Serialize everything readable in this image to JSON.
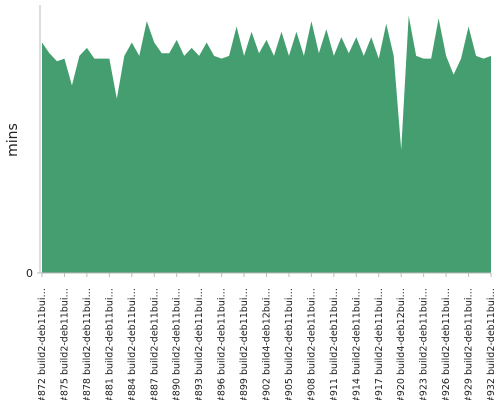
{
  "chart_data": {
    "type": "area",
    "y_label": "mins",
    "color": "#459e6f",
    "categories": [
      "#872 build2-deb11bui…",
      null,
      null,
      "#875 build2-deb11bui…",
      null,
      null,
      "#878 build2-deb11bui…",
      null,
      null,
      "#881 build2-deb11bui…",
      null,
      null,
      "#884 build2-deb11bui…",
      null,
      null,
      "#887 build2-deb11bui…",
      null,
      null,
      "#890 build2-deb11bui…",
      null,
      null,
      "#893 build2-deb11bui…",
      null,
      null,
      "#896 build2-deb11bui…",
      null,
      null,
      "#899 build2-deb11bui…",
      null,
      null,
      "#902 build4-deb12bui…",
      null,
      null,
      "#905 build2-deb11bui…",
      null,
      null,
      "#908 build2-deb11bui…",
      null,
      null,
      "#911 build2-deb11bui…",
      null,
      null,
      "#914 build2-deb11bui…",
      null,
      null,
      "#917 build2-deb11bui…",
      null,
      null,
      "#920 build4-deb12bui…",
      null,
      null,
      "#923 build2-deb11bui…",
      null,
      null,
      "#926 build2-deb11bui…",
      null,
      null,
      "#929 build2-deb11bui…",
      null,
      null,
      "#932 build2-deb11bui…"
    ],
    "values": [
      86,
      82,
      79,
      80,
      70,
      81,
      84,
      80,
      80,
      80,
      65,
      81,
      86,
      81,
      94,
      86,
      82,
      82,
      87,
      81,
      84,
      81,
      86,
      81,
      80,
      81,
      92,
      81,
      90,
      82,
      87,
      81,
      90,
      81,
      90,
      81,
      94,
      82,
      91,
      81,
      88,
      82,
      88,
      81,
      88,
      80,
      93,
      81,
      46,
      96,
      81,
      80,
      80,
      95,
      81,
      74,
      80,
      92,
      81,
      80,
      81
    ],
    "ylim": [
      0,
      100
    ],
    "yticks": [
      0
    ]
  }
}
